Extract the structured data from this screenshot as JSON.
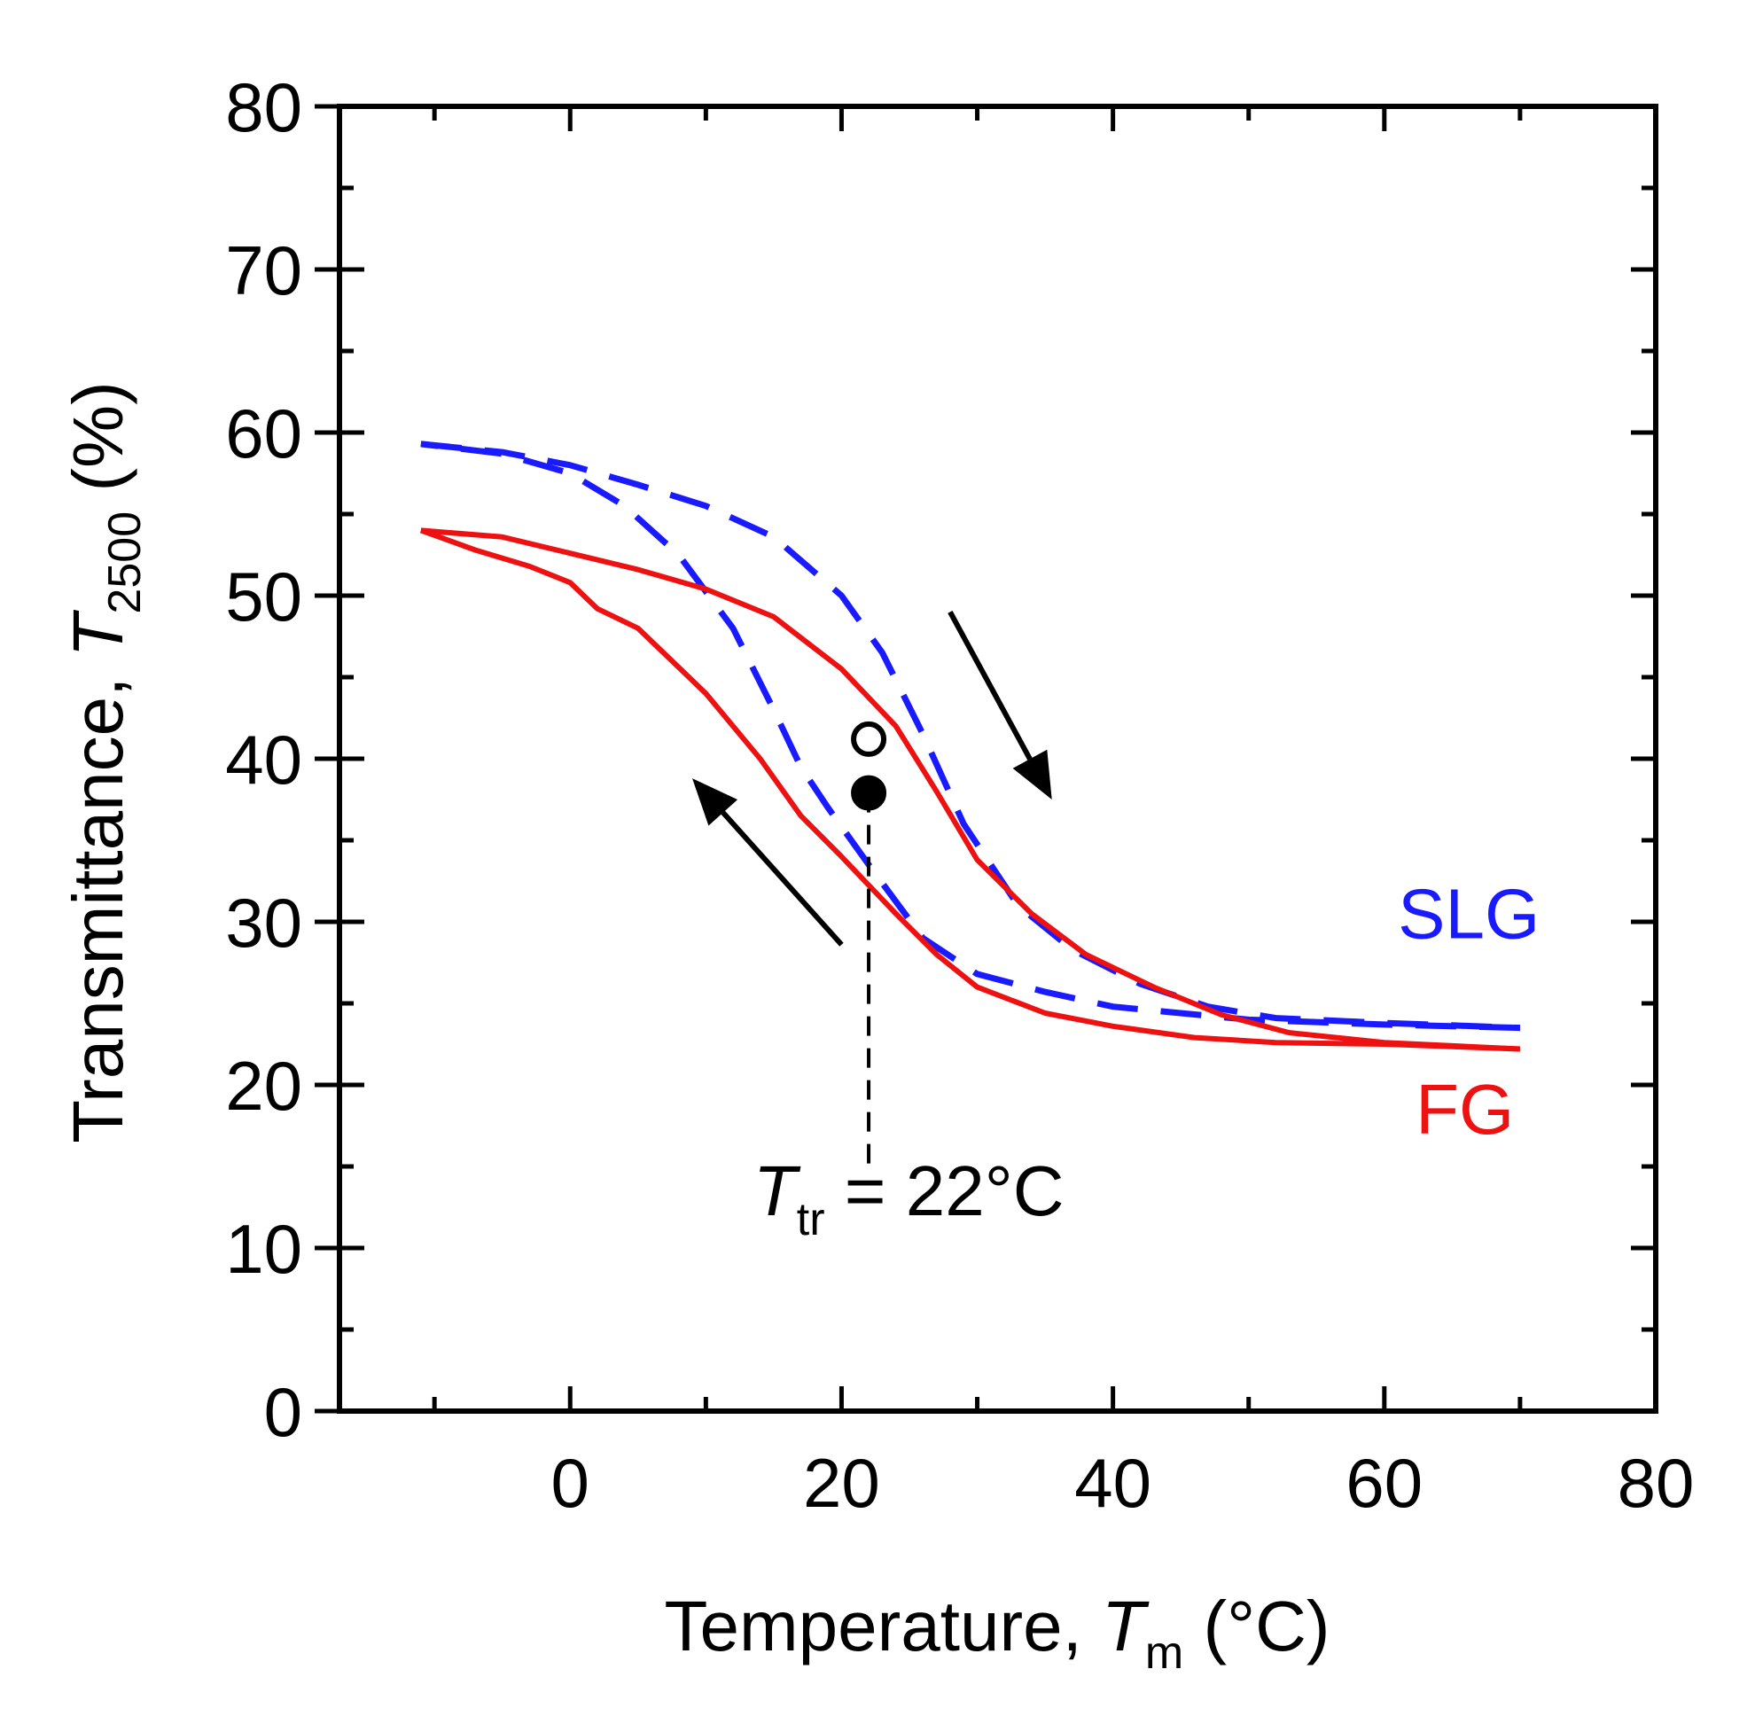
{
  "chart_data": {
    "type": "line",
    "title": "",
    "xlabel": {
      "main": "Temperature, ",
      "var": "T",
      "sub": "m",
      "unit": " (°C)"
    },
    "ylabel": {
      "main": "Transmittance, ",
      "var": "T",
      "sub": "2500",
      "unit": " (%)"
    },
    "xlim": [
      -17,
      80
    ],
    "ylim": [
      0,
      80
    ],
    "xticks": [
      0,
      20,
      40,
      60,
      80
    ],
    "xtick_labels": [
      "0",
      "20",
      "40",
      "60",
      "80"
    ],
    "yticks": [
      0,
      10,
      20,
      30,
      40,
      50,
      60,
      70,
      80
    ],
    "ytick_labels": [
      "0",
      "10",
      "20",
      "30",
      "40",
      "50",
      "60",
      "70",
      "80"
    ],
    "series": [
      {
        "name": "SLG heating",
        "label": "SLG",
        "color": "#1a1aff",
        "dash": true,
        "x": [
          -11,
          -5,
          0,
          5,
          10,
          15,
          20,
          23,
          26,
          29,
          33,
          37,
          42,
          47,
          52,
          60,
          70
        ],
        "y": [
          59.3,
          58.8,
          58,
          56.8,
          55.5,
          53.6,
          50,
          46.5,
          41.5,
          36,
          31,
          28.3,
          26.2,
          24.8,
          24.1,
          23.8,
          23.5
        ]
      },
      {
        "name": "SLG cooling",
        "label": "SLG",
        "color": "#1a1aff",
        "dash": true,
        "x": [
          70,
          60,
          50,
          40,
          35,
          30,
          26,
          22,
          19,
          17,
          15,
          12,
          8,
          4,
          0,
          -5,
          -11
        ],
        "y": [
          23.5,
          23.7,
          24,
          24.8,
          25.7,
          26.8,
          29,
          33.5,
          37,
          39.5,
          43,
          48,
          52.5,
          55.5,
          57.5,
          58.7,
          59.3
        ]
      },
      {
        "name": "FG heating",
        "label": "FG",
        "color": "#ee1111",
        "dash": false,
        "x": [
          -11,
          -5,
          0,
          5,
          10,
          15,
          20,
          24,
          27,
          30,
          34,
          38,
          43,
          48,
          53,
          60,
          70
        ],
        "y": [
          54,
          53.6,
          52.6,
          51.6,
          50.4,
          48.7,
          45.5,
          42,
          38,
          33.8,
          30.5,
          28,
          26,
          24.3,
          23.2,
          22.6,
          22.2
        ]
      },
      {
        "name": "FG cooling",
        "label": "FG",
        "color": "#ee1111",
        "dash": false,
        "x": [
          70,
          60,
          52,
          46,
          40,
          35,
          30,
          27,
          24,
          20,
          17,
          14,
          10,
          5,
          2,
          0,
          -3,
          -7,
          -11
        ],
        "y": [
          22.2,
          22.5,
          22.6,
          22.9,
          23.6,
          24.4,
          26,
          28,
          30.5,
          34,
          36.5,
          40,
          44,
          48,
          49.2,
          50.8,
          51.8,
          52.8,
          54
        ]
      }
    ],
    "points": [
      {
        "x": 22,
        "y": 41.2,
        "style": "open"
      },
      {
        "x": 22,
        "y": 37.9,
        "style": "filled"
      }
    ],
    "vline": {
      "x": 22,
      "y_from": 37.9,
      "y_to": 15
    },
    "arrows": [
      {
        "direction": "heating",
        "from": [
          28,
          49
        ],
        "to": [
          35.5,
          37.5
        ]
      },
      {
        "direction": "cooling",
        "from": [
          20,
          28.6
        ],
        "to": [
          9,
          38.8
        ]
      }
    ],
    "labels": {
      "slg": {
        "text": "SLG",
        "color": "#1a1aff",
        "x": 61,
        "y": 29
      },
      "fg": {
        "text": "FG",
        "color": "#ee1111",
        "x": 61,
        "y": 17
      },
      "transition": {
        "var": "T",
        "sub": "tr",
        "text": " = 22°C",
        "x": 13.5,
        "y": 12
      }
    },
    "grid": false
  }
}
